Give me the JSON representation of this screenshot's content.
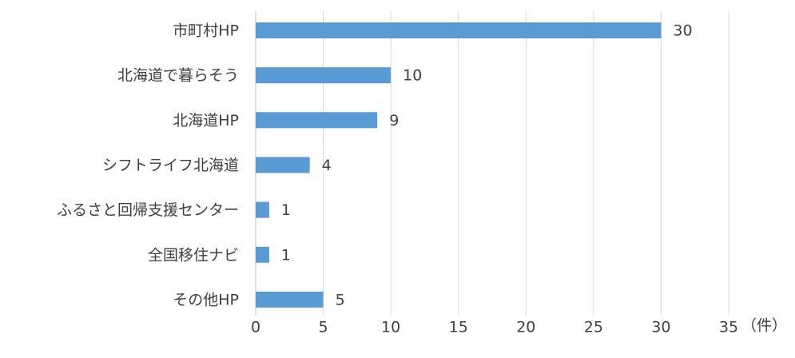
{
  "chart_data": {
    "type": "bar",
    "orientation": "horizontal",
    "categories": [
      "市町村HP",
      "北海道で暮らそう",
      "北海道HP",
      "シフトライフ北海道",
      "ふるさと回帰支援センター",
      "全国移住ナビ",
      "その他HP"
    ],
    "values": [
      30,
      10,
      9,
      4,
      1,
      1,
      5
    ],
    "color": "#5b9bd5",
    "xlabel": "（件）",
    "xlim": [
      0,
      35
    ],
    "xticks": [
      0,
      5,
      10,
      15,
      20,
      25,
      30,
      35
    ],
    "grid": true
  }
}
